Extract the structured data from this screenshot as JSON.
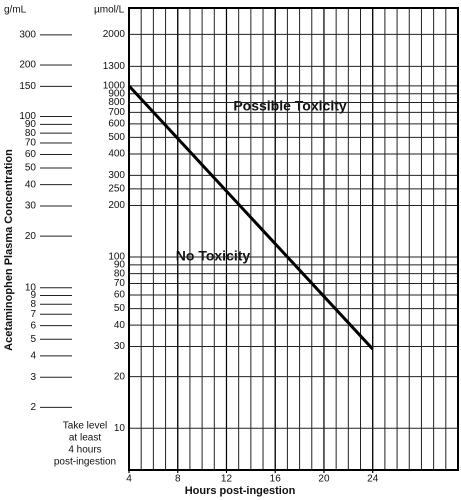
{
  "chart_data": {
    "type": "line",
    "x": [
      4,
      24
    ],
    "values": [
      1000,
      29
    ],
    "color": "#000000",
    "xlim": [
      4,
      31
    ],
    "xticks": [
      4,
      8,
      12,
      16,
      20,
      24
    ],
    "x_minor_grid": 1,
    "y_log": true,
    "ylim": [
      5.7,
      2850
    ],
    "yticks": [
      2000,
      1300,
      1000,
      900,
      800,
      700,
      600,
      500,
      400,
      300,
      250,
      200,
      100,
      90,
      80,
      70,
      60,
      50,
      40,
      30,
      20,
      10
    ],
    "y_unit": "µmol/L",
    "y2lim": [
      0.861,
      430.5
    ],
    "y2ticks": [
      300,
      200,
      150,
      100,
      90,
      80,
      70,
      60,
      50,
      40,
      30,
      20,
      10,
      9,
      8,
      7,
      6,
      5,
      4,
      3,
      2
    ],
    "y2_unit": "g/mL",
    "xlabel": "Hours post-ingestion",
    "ylabel": "Acetaminophen Plasma Concentration",
    "annotations": [
      "Possible Toxicity",
      "No Toxicity"
    ],
    "note_lines": [
      "Take level",
      "at least",
      "4 hours",
      "post-ingestion"
    ],
    "grid": true
  }
}
